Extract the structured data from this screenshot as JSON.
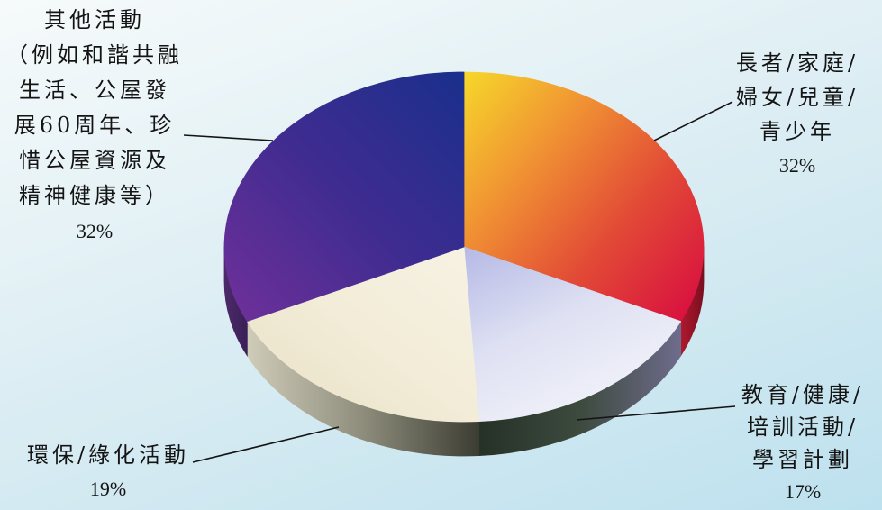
{
  "chart_data": {
    "type": "pie",
    "slices": [
      {
        "label_lines": [
          "長者/家庭/",
          "婦女/兒童/",
          "青少年"
        ],
        "value": 32,
        "value_label": "32%",
        "colors": [
          "#f6d82a",
          "#f09233",
          "#e24a36",
          "#d9123f"
        ],
        "side_colors": [
          "#b0182e",
          "#7a0f20"
        ]
      },
      {
        "label_lines": [
          "教育/健康/",
          "培訓活動/",
          "學習計劃"
        ],
        "value": 17,
        "value_label": "17%",
        "colors": [
          "#b5b9e5",
          "#dfe1f3",
          "#f2f3f9"
        ],
        "side_colors": [
          "#253127",
          "#3d4a3e",
          "#6e6c8c"
        ]
      },
      {
        "label_lines": [
          "環保/綠化活動"
        ],
        "value": 19,
        "value_label": "19%",
        "colors": [
          "#f7f2e3",
          "#f2ecd8",
          "#e9e0c4"
        ],
        "side_colors": [
          "#cfccb8",
          "#8e8d7c",
          "#3c3d33"
        ]
      },
      {
        "label_lines": [
          "其他活動",
          "（例如和諧共融",
          "生活、公屋發",
          "展60周年、珍",
          "惜公屋資源及",
          "精神健康等）"
        ],
        "value": 32,
        "value_label": "32%",
        "colors": [
          "#1a2f8c",
          "#3f2c90",
          "#70309a"
        ],
        "side_colors": [
          "#4c2a6a",
          "#3a1f57"
        ]
      }
    ]
  }
}
